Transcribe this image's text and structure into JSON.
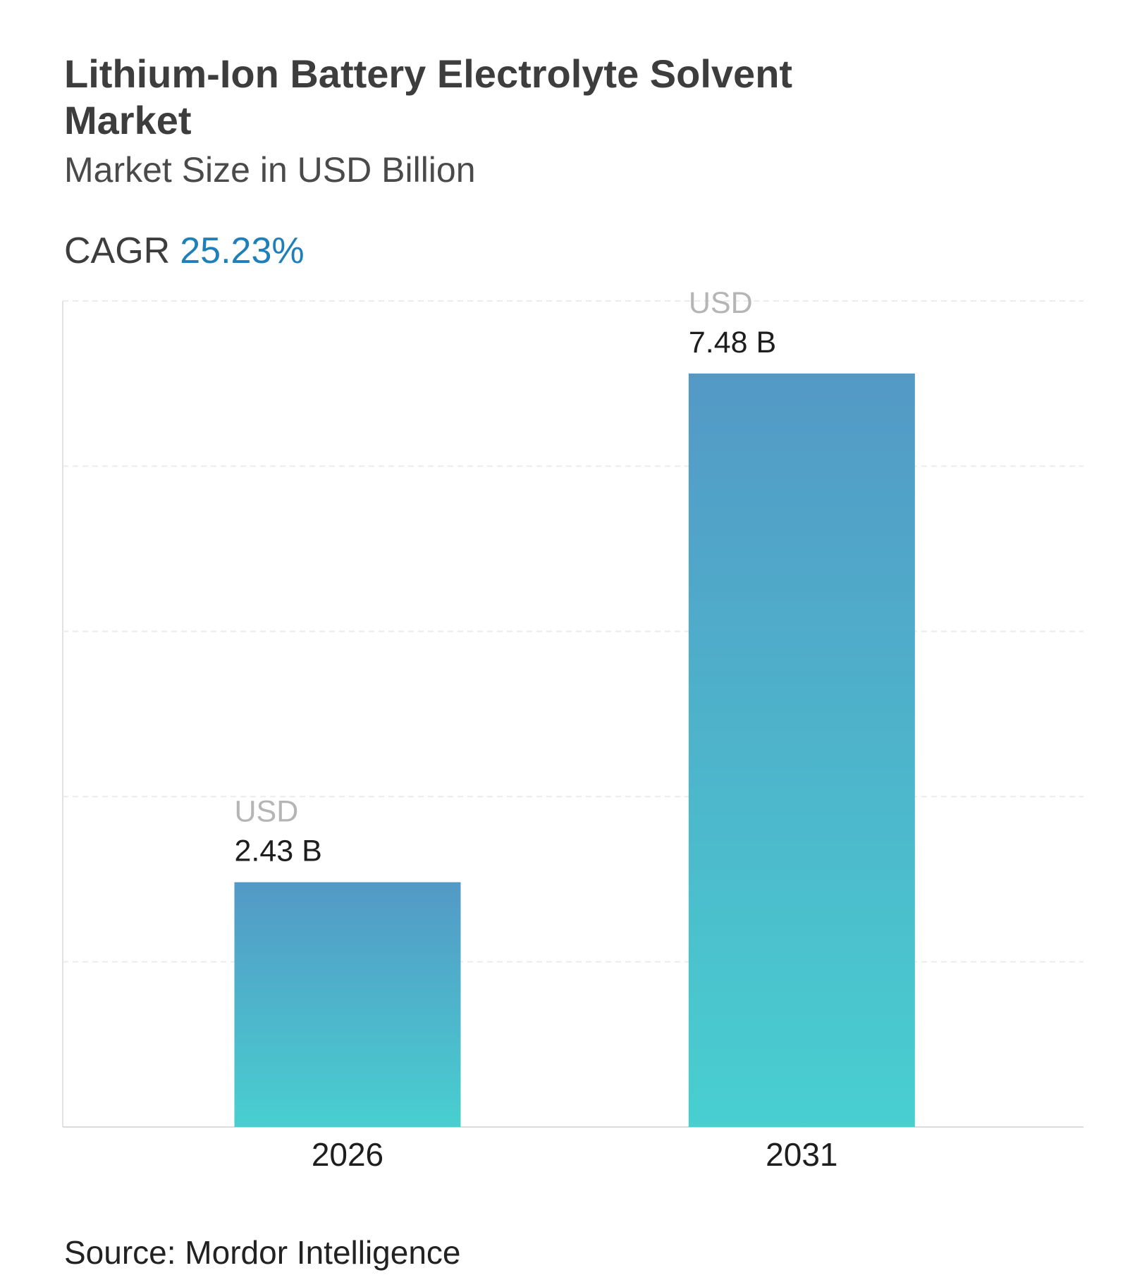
{
  "chart_data": {
    "type": "bar",
    "title": "Lithium-Ion Battery Electrolyte Solvent Market",
    "subtitle": "Market Size in USD Billion",
    "cagr_label": "CAGR",
    "cagr_value": "25.23%",
    "categories": [
      "2026",
      "2031"
    ],
    "values": [
      2.43,
      7.48
    ],
    "value_labels": [
      "2.43 B",
      "7.48 B"
    ],
    "value_label_unit": "USD",
    "color": [
      "#5399c6",
      "#48cfd0"
    ],
    "ylim": [
      0,
      8.2
    ],
    "yticks": [
      0,
      1.64,
      3.28,
      4.92,
      6.56,
      8.2
    ],
    "grid": true,
    "source": "Source: Mordor Intelligence"
  }
}
